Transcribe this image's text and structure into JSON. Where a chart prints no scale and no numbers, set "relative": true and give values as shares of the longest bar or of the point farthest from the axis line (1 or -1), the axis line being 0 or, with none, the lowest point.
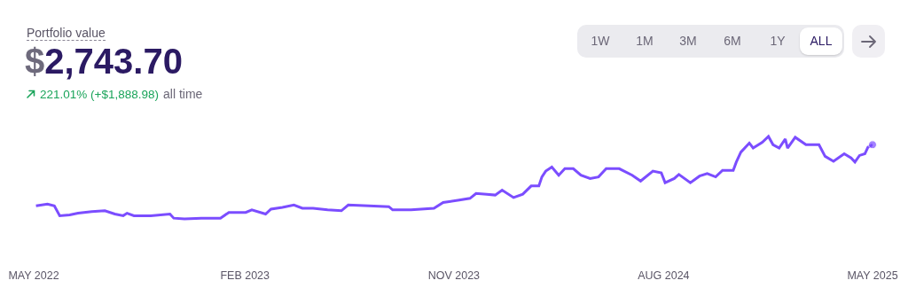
{
  "chart_data": {
    "type": "line",
    "relative": true,
    "title": "Portfolio value",
    "subtitle": "$2,743.70",
    "annotations": [
      "221.01% (+$1,888.98)",
      "all time",
      "1W",
      "1M",
      "3M",
      "6M",
      "1Y",
      "ALL"
    ],
    "xlim": [
      "2022-05-01",
      "2025-05-01"
    ],
    "xticks": [
      {
        "value": "2022-05-01",
        "label": "MAY 2022"
      },
      {
        "value": "2023-02-01",
        "label": "FEB 2023"
      },
      {
        "value": "2023-11-01",
        "label": "NOV 2023"
      },
      {
        "value": "2024-08-01",
        "label": "AUG 2024"
      },
      {
        "value": "2025-05-01",
        "label": "MAY 2025"
      }
    ],
    "grid": false,
    "line_style": "solid",
    "series": [
      {
        "color": "#7b4dff",
        "x": [
          "2022-05-04",
          "2022-05-19",
          "2022-05-28",
          "2022-06-04",
          "2022-06-17",
          "2022-06-28",
          "2022-07-16",
          "2022-08-02",
          "2022-08-15",
          "2022-08-26",
          "2022-08-31",
          "2022-09-09",
          "2022-10-01",
          "2022-10-26",
          "2022-10-31",
          "2022-11-14",
          "2022-12-06",
          "2022-12-31",
          "2023-01-11",
          "2023-02-02",
          "2023-02-10",
          "2023-02-28",
          "2023-03-07",
          "2023-03-22",
          "2023-04-06",
          "2023-04-17",
          "2023-05-01",
          "2023-05-20",
          "2023-06-07",
          "2023-06-16",
          "2023-07-13",
          "2023-08-08",
          "2023-08-13",
          "2023-09-06",
          "2023-10-06",
          "2023-10-18",
          "2023-11-08",
          "2023-11-22",
          "2023-11-30",
          "2023-12-14",
          "2023-12-25",
          "2024-01-03",
          "2024-01-18",
          "2024-01-30",
          "2024-02-10",
          "2024-02-20",
          "2024-02-24",
          "2024-02-29",
          "2024-03-08",
          "2024-03-17",
          "2024-03-25",
          "2024-04-05",
          "2024-04-15",
          "2024-04-27",
          "2024-05-08",
          "2024-05-18",
          "2024-06-04",
          "2024-06-21",
          "2024-07-02",
          "2024-07-18",
          "2024-07-29",
          "2024-08-03",
          "2024-08-15",
          "2024-08-21",
          "2024-09-05",
          "2024-09-17",
          "2024-09-27",
          "2024-10-08",
          "2024-10-17",
          "2024-10-31",
          "2024-11-04",
          "2024-11-10",
          "2024-11-21",
          "2024-11-26",
          "2024-12-08",
          "2024-12-16",
          "2024-12-22",
          "2024-12-30",
          "2025-01-07",
          "2025-01-10",
          "2025-01-20",
          "2025-02-03",
          "2025-02-20",
          "2025-02-28",
          "2025-03-11",
          "2025-03-25",
          "2025-04-03",
          "2025-04-08",
          "2025-04-14",
          "2025-04-21",
          "2025-04-25",
          "2025-05-01"
        ],
        "values": [
          0.16,
          0.18,
          0.16,
          0.04,
          0.05,
          0.07,
          0.09,
          0.1,
          0.06,
          0.04,
          0.07,
          0.04,
          0.04,
          0.06,
          0.01,
          0,
          0.01,
          0.01,
          0.08,
          0.08,
          0.11,
          0.06,
          0.12,
          0.14,
          0.17,
          0.13,
          0.13,
          0.11,
          0.1,
          0.17,
          0.16,
          0.15,
          0.11,
          0.11,
          0.13,
          0.2,
          0.23,
          0.25,
          0.31,
          0.3,
          0.29,
          0.35,
          0.26,
          0.3,
          0.4,
          0.4,
          0.51,
          0.58,
          0.63,
          0.53,
          0.61,
          0.61,
          0.53,
          0.49,
          0.51,
          0.61,
          0.61,
          0.53,
          0.46,
          0.58,
          0.56,
          0.44,
          0.49,
          0.54,
          0.44,
          0.52,
          0.55,
          0.51,
          0.59,
          0.59,
          0.69,
          0.81,
          0.92,
          0.86,
          0.93,
          1.0,
          0.9,
          0.86,
          0.97,
          0.86,
          0.99,
          0.9,
          0.9,
          0.76,
          0.7,
          0.79,
          0.74,
          0.69,
          0.77,
          0.79,
          0.87,
          0.9
        ]
      }
    ]
  }
}
